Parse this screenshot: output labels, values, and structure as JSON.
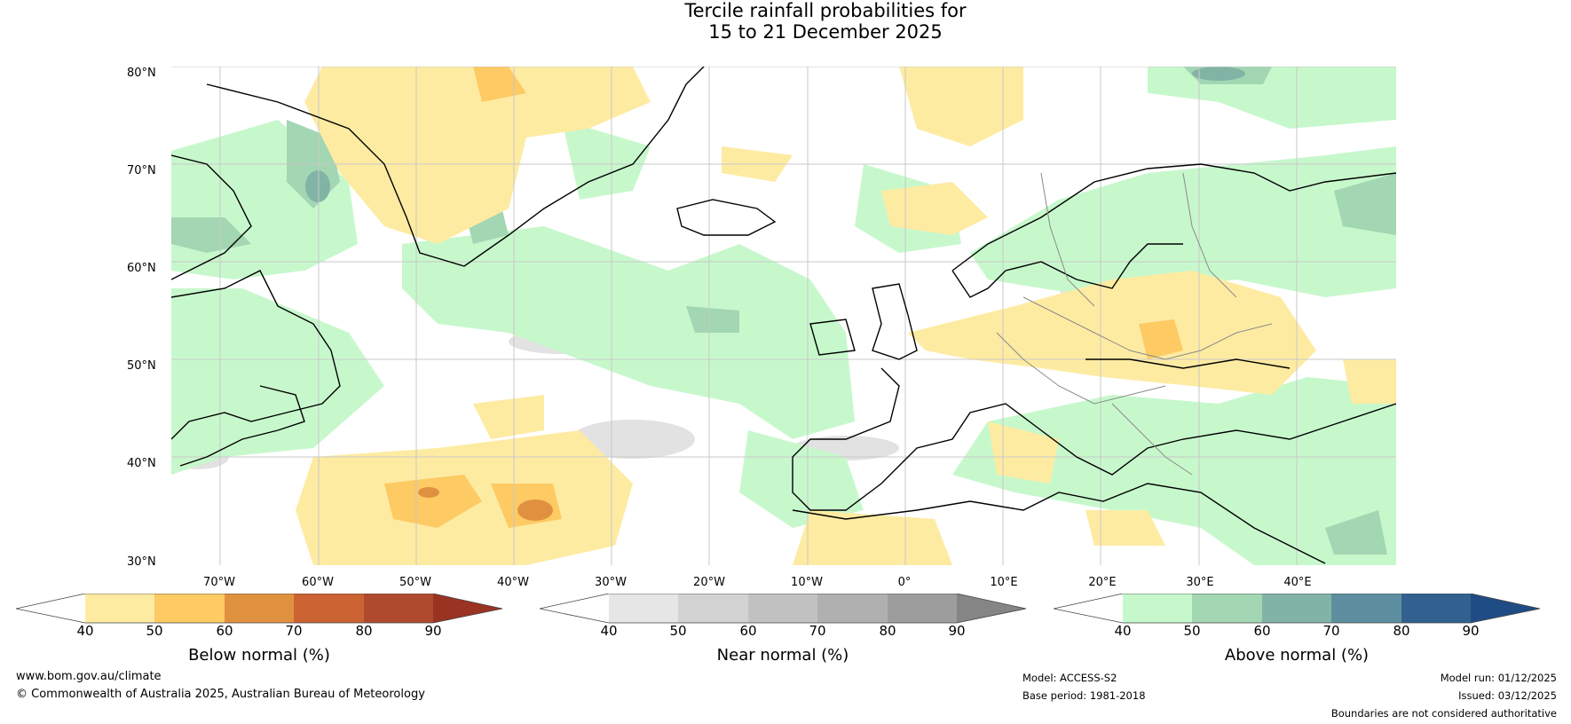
{
  "title": {
    "line1": "Tercile rainfall probabilities for",
    "line2": "15 to 21 December 2025"
  },
  "latitudes": [
    "80°N",
    "70°N",
    "60°N",
    "50°N",
    "40°N",
    "30°N"
  ],
  "longitudes": [
    "70°W",
    "60°W",
    "50°W",
    "40°W",
    "30°W",
    "20°W",
    "10°W",
    "0°",
    "10°E",
    "20°E",
    "30°E",
    "40°E"
  ],
  "colorbars": [
    {
      "label": "Below normal (%)",
      "ticks": [
        "40",
        "50",
        "60",
        "70",
        "80",
        "90"
      ],
      "colors": [
        "#ffffff",
        "#feeba2",
        "#fdca63",
        "#e0913f",
        "#cc6333",
        "#b04a2c",
        "#9a3322"
      ]
    },
    {
      "label": "Near normal (%)",
      "ticks": [
        "40",
        "50",
        "60",
        "70",
        "80",
        "90"
      ],
      "colors": [
        "#ffffff",
        "#e6e6e6",
        "#d2d2d2",
        "#c1c1c1",
        "#b0b0b0",
        "#9d9d9d",
        "#858585"
      ]
    },
    {
      "label": "Above normal (%)",
      "ticks": [
        "40",
        "50",
        "60",
        "70",
        "80",
        "90"
      ],
      "colors": [
        "#ffffff",
        "#c7f8cc",
        "#a3d6b2",
        "#82b4a6",
        "#5e8fa0",
        "#33618f",
        "#1f4c84"
      ]
    }
  ],
  "footer": {
    "website": "www.bom.gov.au/climate",
    "copyright": "© Commonwealth of Australia 2025, Australian Bureau of Meteorology",
    "model": "Model: ACCESS-S2",
    "base_period": "Base period: 1981-2018",
    "model_run": "Model run: 01/12/2025",
    "issued": "Issued: 03/12/2025",
    "disclaimer": "Boundaries are not considered authoritative"
  }
}
